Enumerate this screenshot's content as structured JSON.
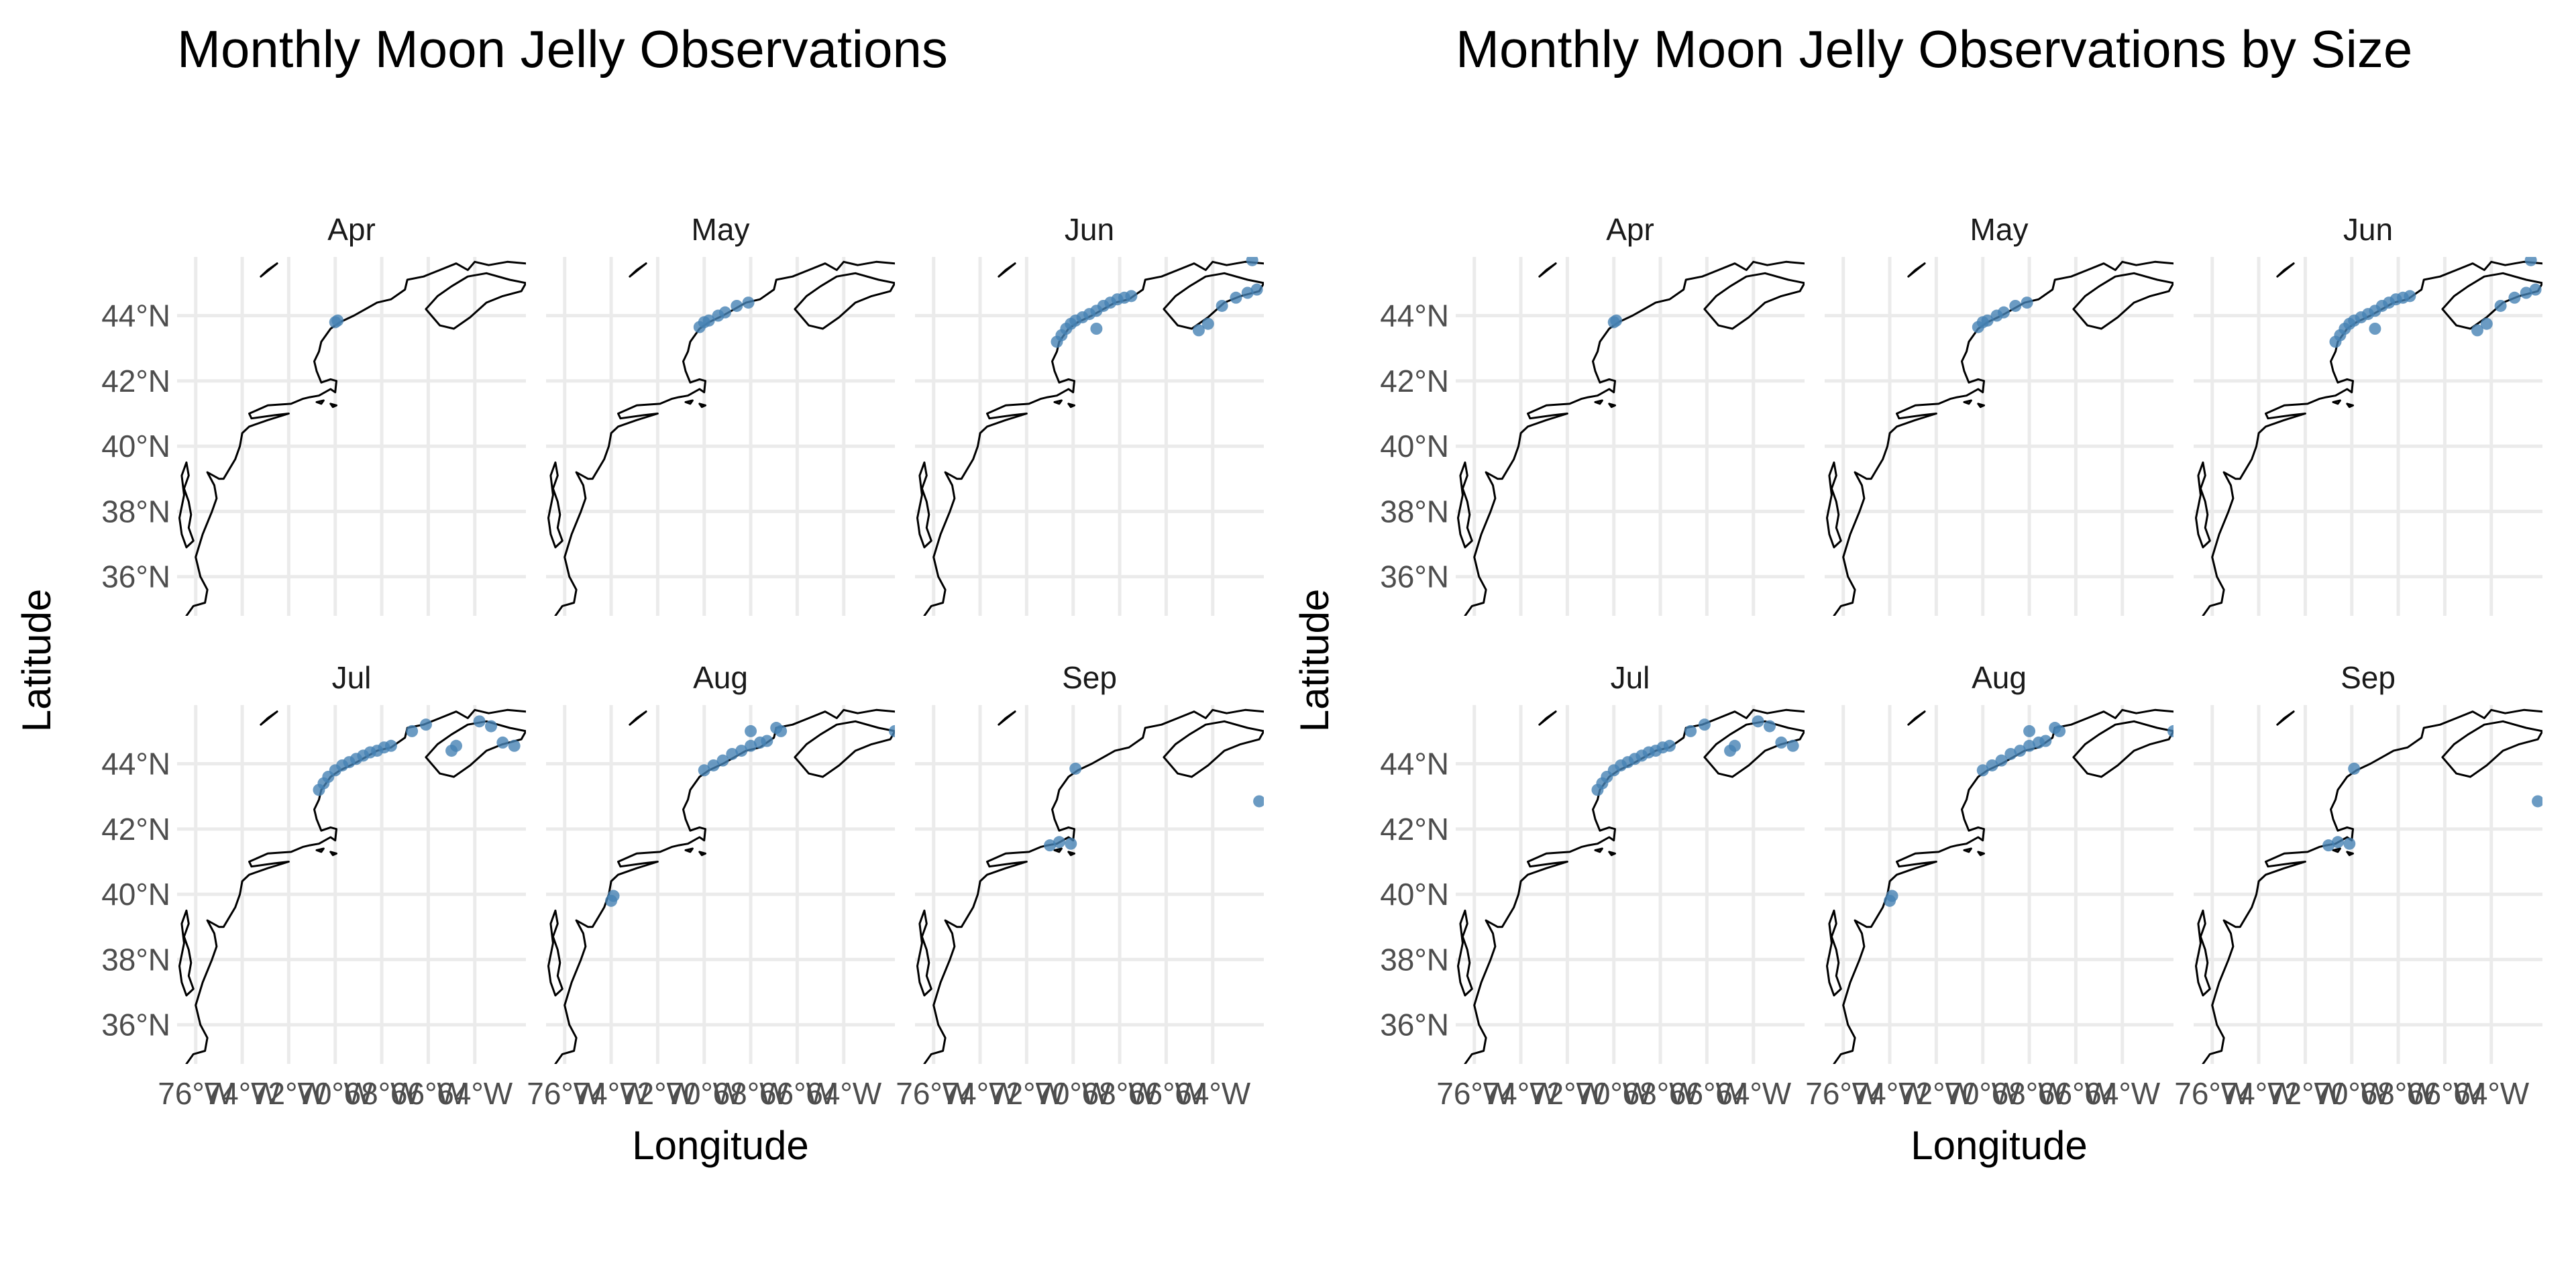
{
  "colors": {
    "points": "#4682b4",
    "coast": "#000000",
    "grid": "#ebebeb",
    "text": "#4d4d4d"
  },
  "chart_data": [
    {
      "type": "scatter",
      "title": "Monthly Moon Jelly Observations",
      "xlabel": "Longitude",
      "ylabel": "Latitude",
      "xlim": [
        -76.8,
        -61.8
      ],
      "ylim": [
        34.8,
        45.8
      ],
      "x_ticks": [
        -76,
        -74,
        -72,
        -70,
        -68,
        -66,
        -64
      ],
      "x_tick_labels": [
        "76°W",
        "74°W",
        "72°W",
        "70°W",
        "68°W",
        "66°W",
        "64°W"
      ],
      "y_ticks": [
        36,
        38,
        40,
        42,
        44
      ],
      "y_tick_labels": [
        "36°N",
        "38°N",
        "40°N",
        "42°N",
        "44°N"
      ],
      "grid": true,
      "panels": [
        {
          "label": "Apr",
          "points": [
            [
              -69.9,
              43.85
            ],
            [
              -70.0,
              43.8
            ]
          ]
        },
        {
          "label": "May",
          "points": [
            [
              -70.2,
              43.65
            ],
            [
              -70.0,
              43.8
            ],
            [
              -69.8,
              43.85
            ],
            [
              -69.4,
              44.0
            ],
            [
              -69.1,
              44.1
            ],
            [
              -68.6,
              44.3
            ],
            [
              -68.1,
              44.4
            ]
          ]
        },
        {
          "label": "Jun",
          "points": [
            [
              -70.7,
              43.2
            ],
            [
              -70.5,
              43.4
            ],
            [
              -70.3,
              43.6
            ],
            [
              -70.1,
              43.75
            ],
            [
              -69.9,
              43.85
            ],
            [
              -69.6,
              43.95
            ],
            [
              -69.3,
              44.05
            ],
            [
              -69.0,
              44.15
            ],
            [
              -68.7,
              44.3
            ],
            [
              -68.4,
              44.4
            ],
            [
              -68.1,
              44.5
            ],
            [
              -67.8,
              44.55
            ],
            [
              -67.5,
              44.6
            ],
            [
              -69.0,
              43.6
            ],
            [
              -64.6,
              43.55
            ],
            [
              -64.2,
              43.75
            ],
            [
              -63.6,
              44.3
            ],
            [
              -63.0,
              44.55
            ],
            [
              -62.5,
              44.7
            ],
            [
              -62.1,
              44.8
            ],
            [
              -62.3,
              45.7
            ]
          ]
        },
        {
          "label": "Jul",
          "points": [
            [
              -70.7,
              43.2
            ],
            [
              -70.5,
              43.4
            ],
            [
              -70.3,
              43.6
            ],
            [
              -70.0,
              43.8
            ],
            [
              -69.7,
              43.95
            ],
            [
              -69.4,
              44.05
            ],
            [
              -69.1,
              44.15
            ],
            [
              -68.8,
              44.25
            ],
            [
              -68.5,
              44.35
            ],
            [
              -68.2,
              44.4
            ],
            [
              -67.9,
              44.5
            ],
            [
              -67.6,
              44.55
            ],
            [
              -66.7,
              45.0
            ],
            [
              -66.1,
              45.2
            ],
            [
              -65.0,
              44.4
            ],
            [
              -64.8,
              44.55
            ],
            [
              -63.8,
              45.3
            ],
            [
              -63.3,
              45.15
            ],
            [
              -62.8,
              44.65
            ],
            [
              -62.3,
              44.55
            ]
          ]
        },
        {
          "label": "Aug",
          "points": [
            [
              -73.9,
              39.95
            ],
            [
              -74.0,
              39.8
            ],
            [
              -70.0,
              43.8
            ],
            [
              -69.6,
              43.95
            ],
            [
              -69.2,
              44.1
            ],
            [
              -68.8,
              44.3
            ],
            [
              -68.4,
              44.4
            ],
            [
              -68.0,
              44.55
            ],
            [
              -67.6,
              44.65
            ],
            [
              -67.3,
              44.7
            ],
            [
              -66.9,
              45.1
            ],
            [
              -66.7,
              45.0
            ],
            [
              -68.0,
              45.0
            ],
            [
              -61.8,
              45.0
            ]
          ]
        },
        {
          "label": "Sep",
          "points": [
            [
              -69.9,
              43.85
            ],
            [
              -70.6,
              41.6
            ],
            [
              -71.0,
              41.5
            ],
            [
              -70.1,
              41.55
            ],
            [
              -62.0,
              42.85
            ]
          ]
        }
      ]
    },
    {
      "type": "scatter",
      "title": "Monthly Moon Jelly Observations by Size",
      "xlabel": "Longitude",
      "ylabel": "Latitude",
      "xlim": [
        -76.8,
        -61.8
      ],
      "ylim": [
        34.8,
        45.8
      ],
      "x_ticks": [
        -76,
        -74,
        -72,
        -70,
        -68,
        -66,
        -64
      ],
      "x_tick_labels": [
        "76°W",
        "74°W",
        "72°W",
        "70°W",
        "68°W",
        "66°W",
        "64°W"
      ],
      "y_ticks": [
        36,
        38,
        40,
        42,
        44
      ],
      "y_tick_labels": [
        "36°N",
        "38°N",
        "40°N",
        "42°N",
        "44°N"
      ],
      "grid": true,
      "panels": [
        {
          "label": "Apr",
          "points": [
            [
              -69.9,
              43.85
            ],
            [
              -70.0,
              43.8
            ]
          ]
        },
        {
          "label": "May",
          "points": [
            [
              -70.2,
              43.65
            ],
            [
              -70.0,
              43.8
            ],
            [
              -69.8,
              43.85
            ],
            [
              -69.4,
              44.0
            ],
            [
              -69.1,
              44.1
            ],
            [
              -68.6,
              44.3
            ],
            [
              -68.1,
              44.4
            ]
          ]
        },
        {
          "label": "Jun",
          "points": [
            [
              -70.7,
              43.2
            ],
            [
              -70.5,
              43.4
            ],
            [
              -70.3,
              43.6
            ],
            [
              -70.1,
              43.75
            ],
            [
              -69.9,
              43.85
            ],
            [
              -69.6,
              43.95
            ],
            [
              -69.3,
              44.05
            ],
            [
              -69.0,
              44.15
            ],
            [
              -68.7,
              44.3
            ],
            [
              -68.4,
              44.4
            ],
            [
              -68.1,
              44.5
            ],
            [
              -67.8,
              44.55
            ],
            [
              -67.5,
              44.6
            ],
            [
              -69.0,
              43.6
            ],
            [
              -64.6,
              43.55
            ],
            [
              -64.2,
              43.75
            ],
            [
              -63.6,
              44.3
            ],
            [
              -63.0,
              44.55
            ],
            [
              -62.5,
              44.7
            ],
            [
              -62.1,
              44.8
            ],
            [
              -62.3,
              45.7
            ]
          ]
        },
        {
          "label": "Jul",
          "points": [
            [
              -70.7,
              43.2
            ],
            [
              -70.5,
              43.4
            ],
            [
              -70.3,
              43.6
            ],
            [
              -70.0,
              43.8
            ],
            [
              -69.7,
              43.95
            ],
            [
              -69.4,
              44.05
            ],
            [
              -69.1,
              44.15
            ],
            [
              -68.8,
              44.25
            ],
            [
              -68.5,
              44.35
            ],
            [
              -68.2,
              44.4
            ],
            [
              -67.9,
              44.5
            ],
            [
              -67.6,
              44.55
            ],
            [
              -66.7,
              45.0
            ],
            [
              -66.1,
              45.2
            ],
            [
              -65.0,
              44.4
            ],
            [
              -64.8,
              44.55
            ],
            [
              -63.8,
              45.3
            ],
            [
              -63.3,
              45.15
            ],
            [
              -62.8,
              44.65
            ],
            [
              -62.3,
              44.55
            ]
          ]
        },
        {
          "label": "Aug",
          "points": [
            [
              -73.9,
              39.95
            ],
            [
              -74.0,
              39.8
            ],
            [
              -70.0,
              43.8
            ],
            [
              -69.6,
              43.95
            ],
            [
              -69.2,
              44.1
            ],
            [
              -68.8,
              44.3
            ],
            [
              -68.4,
              44.4
            ],
            [
              -68.0,
              44.55
            ],
            [
              -67.6,
              44.65
            ],
            [
              -67.3,
              44.7
            ],
            [
              -66.9,
              45.1
            ],
            [
              -66.7,
              45.0
            ],
            [
              -68.0,
              45.0
            ],
            [
              -61.8,
              45.0
            ]
          ]
        },
        {
          "label": "Sep",
          "points": [
            [
              -69.9,
              43.85
            ],
            [
              -70.6,
              41.6
            ],
            [
              -71.0,
              41.5
            ],
            [
              -70.1,
              41.55
            ],
            [
              -62.0,
              42.85
            ]
          ]
        }
      ]
    }
  ]
}
